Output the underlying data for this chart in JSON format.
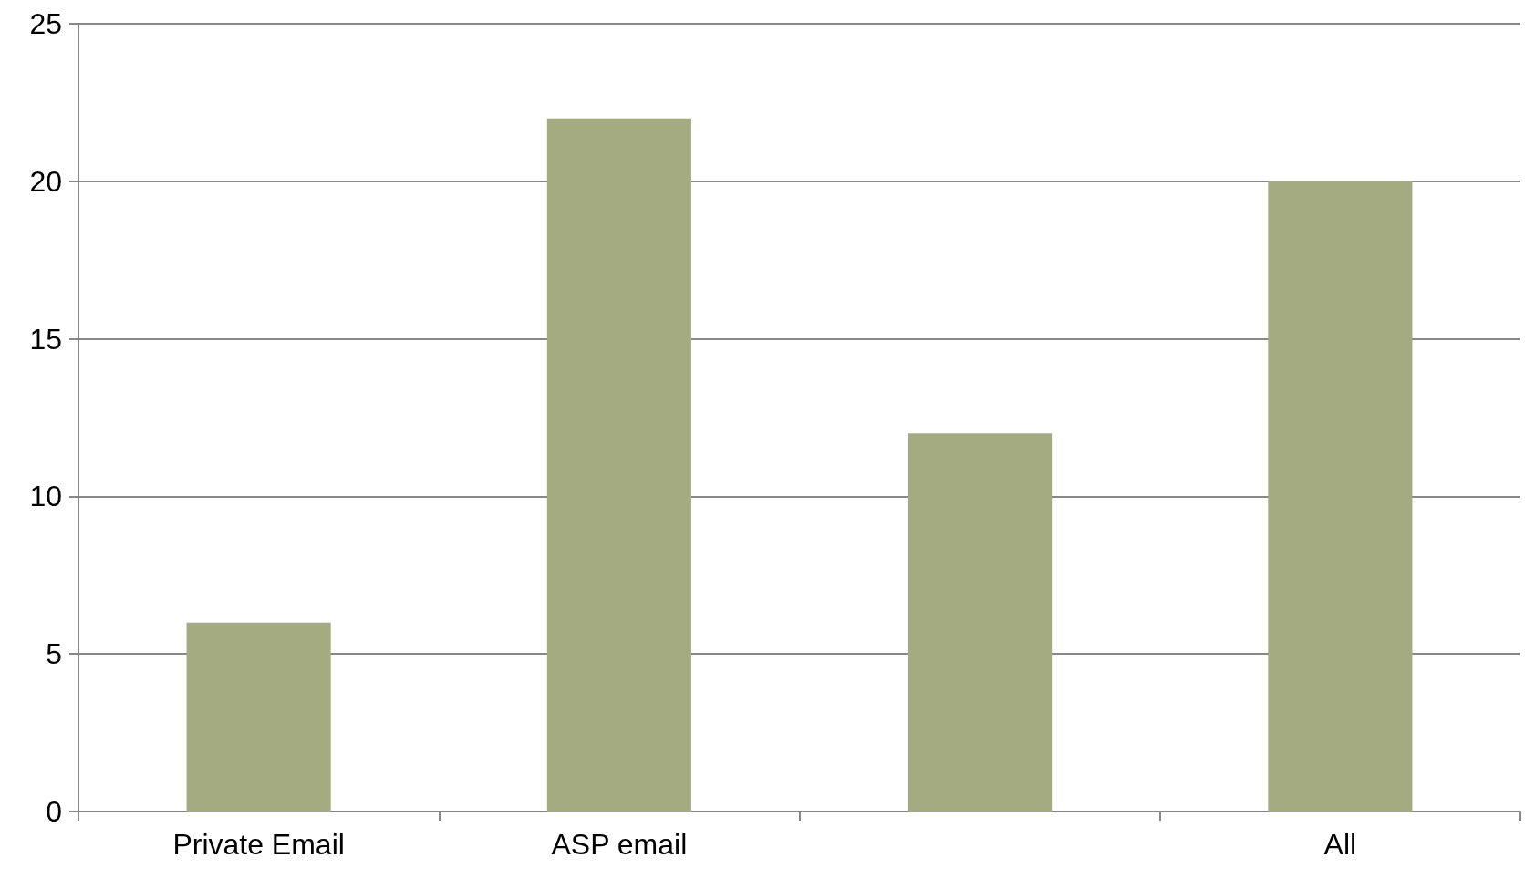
{
  "chart_data": {
    "type": "bar",
    "categories": [
      "Private Email",
      "ASP email",
      null,
      "All"
    ],
    "values": [
      6,
      22,
      12,
      20
    ],
    "color": "#a4ab80",
    "ylim": [
      0,
      25
    ],
    "yticks": [
      0,
      5,
      10,
      15,
      20,
      25
    ],
    "grid": "y"
  }
}
